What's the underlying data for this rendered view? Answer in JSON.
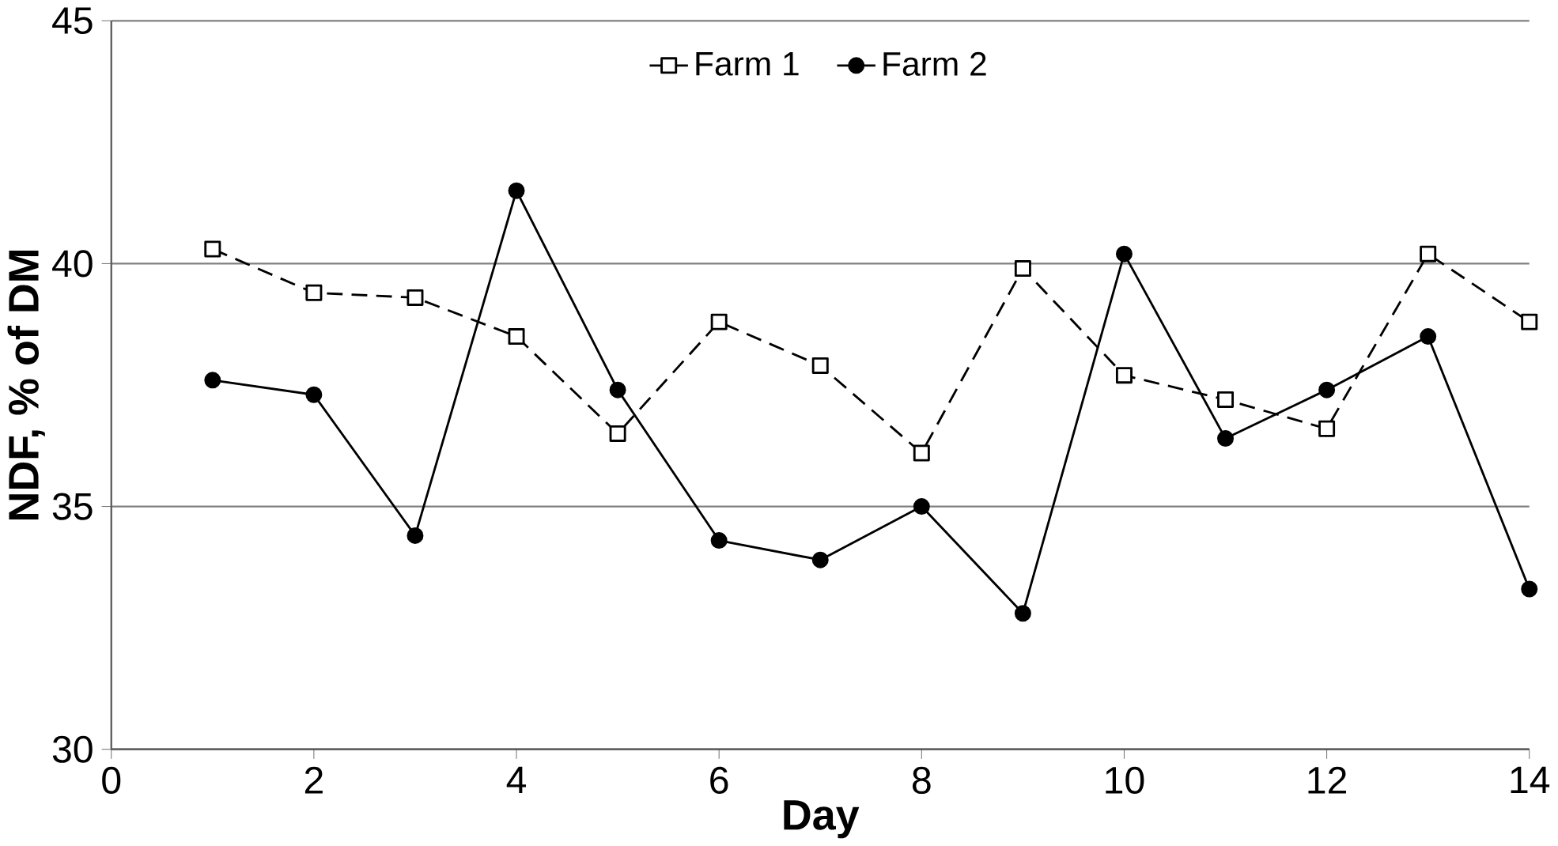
{
  "chart_data": {
    "type": "line",
    "xlabel": "Day",
    "ylabel": "NDF, % of DM",
    "x": [
      1,
      2,
      3,
      4,
      5,
      6,
      7,
      8,
      9,
      10,
      11,
      12,
      13,
      14
    ],
    "series": [
      {
        "name": "Farm 1",
        "color": "#000000",
        "marker": "square",
        "line_style": "dashed",
        "values": [
          40.3,
          39.4,
          39.3,
          38.5,
          36.5,
          38.8,
          37.9,
          36.1,
          39.9,
          37.7,
          37.2,
          36.6,
          40.2,
          38.8
        ]
      },
      {
        "name": "Farm 2",
        "color": "#000000",
        "marker": "circle",
        "line_style": "solid",
        "values": [
          37.6,
          37.3,
          34.4,
          41.5,
          37.4,
          34.3,
          33.9,
          35.0,
          32.8,
          40.2,
          36.4,
          37.4,
          38.5,
          33.3
        ]
      }
    ],
    "xlim": [
      0,
      14
    ],
    "xticks": [
      0,
      2,
      4,
      6,
      8,
      10,
      12,
      14
    ],
    "ylim": [
      30,
      45
    ],
    "yticks": [
      30,
      35,
      40,
      45
    ],
    "grid": "y",
    "legend": "top"
  }
}
